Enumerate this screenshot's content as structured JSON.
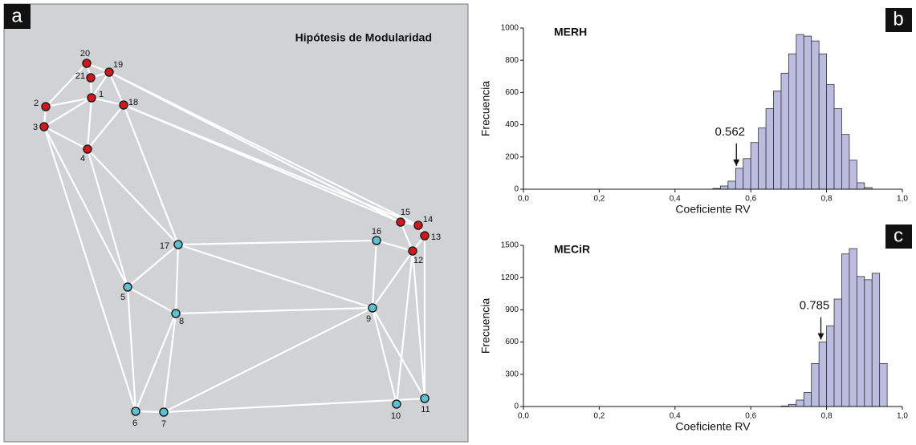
{
  "diagram": {
    "panel_label": "a",
    "title": "Hipótesis de Modularidad",
    "nodes": [
      {
        "label": "20",
        "color": "#d9141a"
      },
      {
        "label": "19",
        "color": "#d9141a"
      },
      {
        "label": "21",
        "color": "#d9141a"
      },
      {
        "label": "1",
        "color": "#d9141a"
      },
      {
        "label": "18",
        "color": "#d9141a"
      },
      {
        "label": "2",
        "color": "#d9141a"
      },
      {
        "label": "3",
        "color": "#d9141a"
      },
      {
        "label": "4",
        "color": "#d9141a"
      },
      {
        "label": "15",
        "color": "#d9141a"
      },
      {
        "label": "14",
        "color": "#d9141a"
      },
      {
        "label": "13",
        "color": "#d9141a"
      },
      {
        "label": "12",
        "color": "#d9141a"
      },
      {
        "label": "16",
        "color": "#5bc3d6"
      },
      {
        "label": "17",
        "color": "#5bc3d6"
      },
      {
        "label": "5",
        "color": "#5bc3d6"
      },
      {
        "label": "8",
        "color": "#5bc3d6"
      },
      {
        "label": "9",
        "color": "#5bc3d6"
      },
      {
        "label": "6",
        "color": "#5bc3d6"
      },
      {
        "label": "7",
        "color": "#5bc3d6"
      },
      {
        "label": "10",
        "color": "#5bc3d6"
      },
      {
        "label": "11",
        "color": "#5bc3d6"
      }
    ]
  },
  "chart_data": [
    {
      "type": "histogram",
      "panel_label": "b",
      "title": "MERH",
      "x_label": "Coeficiente RV",
      "y_label": "Frecuencia",
      "color": "#bcbce0",
      "bins": [
        0.5,
        0.52,
        0.54,
        0.56,
        0.58,
        0.6,
        0.62,
        0.64,
        0.66,
        0.68,
        0.7,
        0.72,
        0.74,
        0.76,
        0.78,
        0.8,
        0.82,
        0.84,
        0.86,
        0.88,
        0.9,
        0.92
      ],
      "values": [
        5,
        20,
        50,
        130,
        190,
        290,
        380,
        500,
        610,
        720,
        840,
        960,
        950,
        920,
        840,
        650,
        500,
        340,
        180,
        40,
        10
      ],
      "xlim": [
        0,
        1
      ],
      "ylim": [
        0,
        1000
      ],
      "xticks": [
        {
          "value": 0,
          "label": "0,0"
        },
        {
          "value": 0.2,
          "label": "0,2"
        },
        {
          "value": 0.4,
          "label": "0,4"
        },
        {
          "value": 0.6,
          "label": "0,6"
        },
        {
          "value": 0.8,
          "label": "0,8"
        },
        {
          "value": 1,
          "label": "1,0"
        }
      ],
      "yticks": [
        0,
        200,
        400,
        600,
        800,
        1000
      ],
      "annotation": {
        "label": "0.562",
        "value": 0.562
      }
    },
    {
      "type": "histogram",
      "panel_label": "c",
      "title": "MECiR",
      "x_label": "Coeficiente RV",
      "y_label": "Frecuencia",
      "color": "#bcbce0",
      "bins": [
        0.68,
        0.7,
        0.72,
        0.74,
        0.76,
        0.78,
        0.8,
        0.82,
        0.84,
        0.86,
        0.88,
        0.9,
        0.92,
        0.94,
        0.96
      ],
      "values": [
        5,
        20,
        60,
        130,
        400,
        600,
        750,
        1000,
        1420,
        1470,
        1210,
        1180,
        1240,
        400
      ],
      "xlim": [
        0,
        1
      ],
      "ylim": [
        0,
        1500
      ],
      "xticks": [
        {
          "value": 0,
          "label": "0,0"
        },
        {
          "value": 0.2,
          "label": "0,2"
        },
        {
          "value": 0.4,
          "label": "0,4"
        },
        {
          "value": 0.6,
          "label": "0,6"
        },
        {
          "value": 0.8,
          "label": "0,8"
        },
        {
          "value": 1,
          "label": "1,0"
        }
      ],
      "yticks": [
        0,
        300,
        600,
        900,
        1200,
        1500
      ],
      "annotation": {
        "label": "0.785",
        "value": 0.785
      }
    }
  ]
}
